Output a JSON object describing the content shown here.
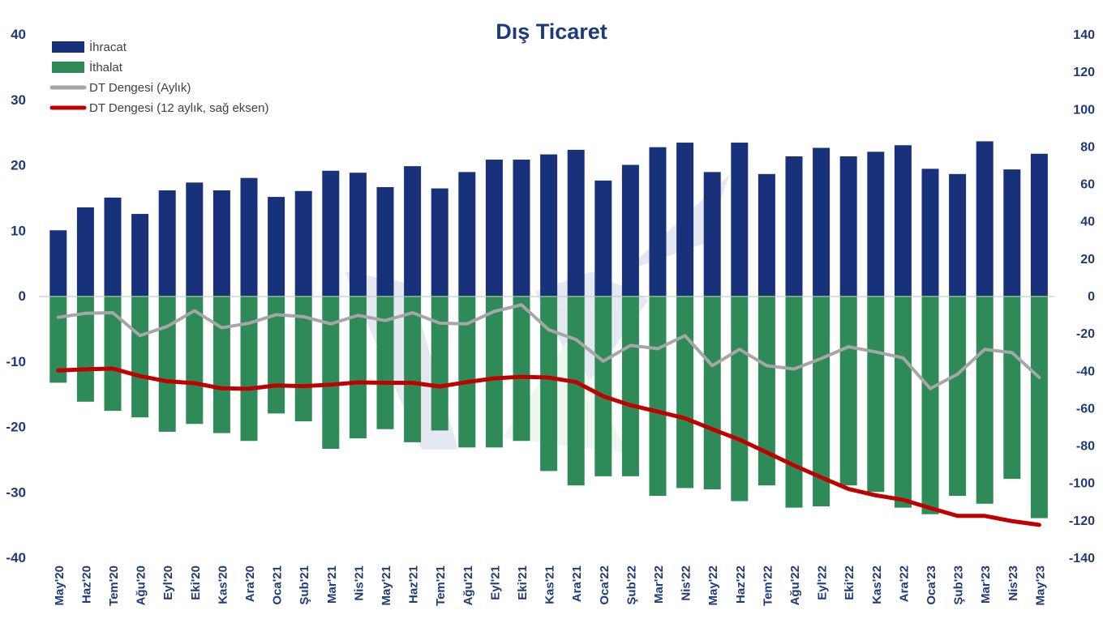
{
  "chart_data": {
    "type": "bar+line",
    "title": "Dış Ticaret",
    "categories": [
      "May'20",
      "Haz'20",
      "Tem'20",
      "Ağu'20",
      "Eyl'20",
      "Eki'20",
      "Kas'20",
      "Ara'20",
      "Oca'21",
      "Şub'21",
      "Mar'21",
      "Nis'21",
      "May'21",
      "Haz'21",
      "Tem'21",
      "Ağu'21",
      "Eyl'21",
      "Eki'21",
      "Kas'21",
      "Ara'21",
      "Oca'22",
      "Şub'22",
      "Mar'22",
      "Nis'22",
      "May'22",
      "Haz'22",
      "Tem'22",
      "Ağu'22",
      "Eyl'22",
      "Eki'22",
      "Kas'22",
      "Ara'22",
      "Oca'23",
      "Şub'23",
      "Mar'23",
      "Nis'23",
      "May'23"
    ],
    "y_left": {
      "min": -40,
      "max": 40,
      "ticks": [
        40,
        30,
        20,
        10,
        0,
        -10,
        -20,
        -30,
        -40
      ]
    },
    "y_right": {
      "min": -140,
      "max": 140,
      "ticks": [
        140,
        120,
        100,
        80,
        60,
        40,
        20,
        0,
        -20,
        -40,
        -60,
        -80,
        -100,
        -120,
        -140
      ]
    },
    "series": [
      {
        "name": "İhracat",
        "kind": "bar",
        "axis": "left",
        "color": "#17327a",
        "values": [
          10.0,
          13.5,
          15.0,
          12.5,
          16.1,
          17.3,
          16.1,
          18.0,
          15.1,
          16.0,
          19.1,
          18.8,
          16.6,
          19.8,
          16.4,
          18.9,
          20.8,
          20.8,
          21.6,
          22.3,
          17.6,
          20.0,
          22.7,
          23.4,
          18.9,
          23.4,
          18.6,
          21.3,
          22.6,
          21.3,
          22.0,
          23.0,
          19.4,
          18.6,
          23.6,
          19.3,
          21.7
        ]
      },
      {
        "name": "İthalat",
        "kind": "bar",
        "axis": "left",
        "color": "#2e8b57",
        "values": [
          -13.3,
          -16.2,
          -17.6,
          -18.6,
          -20.8,
          -19.6,
          -21.0,
          -22.2,
          -18.0,
          -19.2,
          -23.4,
          -21.8,
          -20.4,
          -22.4,
          -20.6,
          -23.2,
          -23.2,
          -22.2,
          -26.8,
          -29.0,
          -27.6,
          -27.6,
          -30.6,
          -29.4,
          -29.6,
          -31.4,
          -29.0,
          -32.4,
          -32.2,
          -29.0,
          -30.0,
          -32.4,
          -33.4,
          -30.6,
          -31.8,
          -28.0,
          -34.0
        ]
      },
      {
        "name": "DT Dengesi (Aylık)",
        "kind": "line",
        "axis": "left",
        "color": "#a6a6a6",
        "values": [
          -3.3,
          -2.7,
          -2.6,
          -6.1,
          -4.7,
          -2.3,
          -4.9,
          -4.2,
          -2.9,
          -3.2,
          -4.3,
          -3.0,
          -3.8,
          -2.6,
          -4.2,
          -4.3,
          -2.4,
          -1.4,
          -5.2,
          -6.7,
          -10.0,
          -7.6,
          -8.1,
          -6.1,
          -10.7,
          -8.2,
          -10.7,
          -11.2,
          -9.6,
          -7.8,
          -8.6,
          -9.5,
          -14.2,
          -12.0,
          -8.2,
          -8.7,
          -12.5
        ]
      },
      {
        "name": "DT Dengesi (12 aylık, sağ eksen)",
        "kind": "line",
        "axis": "right",
        "color": "#c00000",
        "values": [
          -40,
          -39.4,
          -39,
          -43,
          -45.8,
          -46.8,
          -49.6,
          -49.8,
          -48,
          -48.4,
          -47.6,
          -46.4,
          -46.6,
          -46.6,
          -48.6,
          -46.2,
          -44.2,
          -43.4,
          -43.8,
          -46.2,
          -53.8,
          -58.6,
          -62,
          -65.6,
          -71.4,
          -77,
          -83.8,
          -90.8,
          -97.2,
          -103.4,
          -106.8,
          -109.2,
          -113.6,
          -117.8,
          -117.8,
          -120.6,
          -122.6
        ]
      }
    ],
    "legend_position": "top-left",
    "grid": false
  }
}
